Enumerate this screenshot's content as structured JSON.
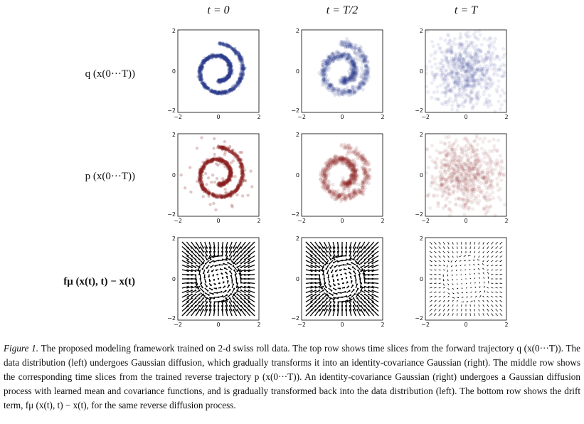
{
  "columns": [
    "t = 0",
    "t = T/2",
    "t = T"
  ],
  "rows": [
    {
      "label": "q (x(0···T))",
      "kind": "forward",
      "color": "#2b3a8c"
    },
    {
      "label": "p (x(0···T))",
      "kind": "reverse",
      "color": "#8a1f1f"
    },
    {
      "label": "fμ (x(t), t) − x(t)",
      "kind": "drift",
      "color": "#000000"
    }
  ],
  "axis_ticks": {
    "x": [
      "−2",
      "0",
      "2"
    ],
    "y": [
      "2",
      "0",
      "−2"
    ]
  },
  "caption": {
    "label": "Figure 1.",
    "text": "The proposed modeling framework trained on 2-d swiss roll data. The top row shows time slices from the forward trajectory q (x(0···T)). The data distribution (left) undergoes Gaussian diffusion, which gradually transforms it into an identity-covariance Gaussian (right). The middle row shows the corresponding time slices from the trained reverse trajectory p (x(0···T)). An identity-covariance Gaussian (right) undergoes a Gaussian diffusion process with learned mean and covariance functions, and is gradually transformed back into the data distribution (left). The bottom row shows the drift term, fμ (x(t), t) − x(t), for the same reverse diffusion process."
  }
}
